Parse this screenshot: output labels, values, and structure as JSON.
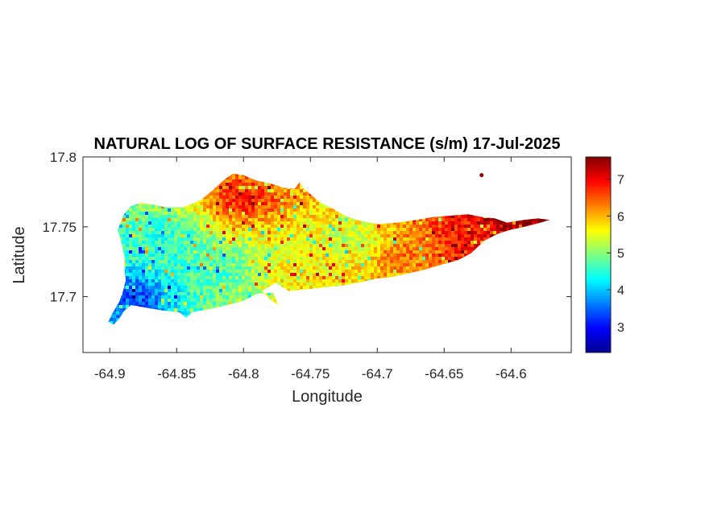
{
  "chart_data": {
    "type": "heatmap",
    "title": "NATURAL LOG OF SURFACE RESISTANCE (s/m) 17-Jul-2025",
    "xlabel": "Longitude",
    "ylabel": "Latitude",
    "xlim": [
      -64.92,
      -64.555
    ],
    "ylim": [
      17.66,
      17.8
    ],
    "x_ticks": [
      {
        "value": -64.9,
        "label": "-64.9"
      },
      {
        "value": -64.85,
        "label": "-64.85"
      },
      {
        "value": -64.8,
        "label": "-64.8"
      },
      {
        "value": -64.75,
        "label": "-64.75"
      },
      {
        "value": -64.7,
        "label": "-64.7"
      },
      {
        "value": -64.65,
        "label": "-64.65"
      },
      {
        "value": -64.6,
        "label": "-64.6"
      }
    ],
    "y_ticks": [
      {
        "value": 17.8,
        "label": "17.8"
      },
      {
        "value": 17.75,
        "label": "17.75"
      },
      {
        "value": 17.7,
        "label": "17.7"
      }
    ],
    "colorbar": {
      "colormap": "jet",
      "range": [
        2.3,
        7.6
      ],
      "ticks": [
        {
          "value": 3,
          "label": "3"
        },
        {
          "value": 4,
          "label": "4"
        },
        {
          "value": 5,
          "label": "5"
        },
        {
          "value": 6,
          "label": "6"
        },
        {
          "value": 7,
          "label": "7"
        }
      ]
    },
    "island_outline": [
      [
        -64.897,
        17.68
      ],
      [
        -64.893,
        17.684
      ],
      [
        -64.889,
        17.69
      ],
      [
        -64.884,
        17.694
      ],
      [
        -64.872,
        17.692
      ],
      [
        -64.86,
        17.69
      ],
      [
        -64.848,
        17.689
      ],
      [
        -64.843,
        17.685
      ],
      [
        -64.838,
        17.689
      ],
      [
        -64.826,
        17.691
      ],
      [
        -64.812,
        17.694
      ],
      [
        -64.8,
        17.697
      ],
      [
        -64.79,
        17.702
      ],
      [
        -64.778,
        17.703
      ],
      [
        -64.774,
        17.694
      ],
      [
        -64.78,
        17.698
      ],
      [
        -64.786,
        17.704
      ],
      [
        -64.776,
        17.71
      ],
      [
        -64.766,
        17.704
      ],
      [
        -64.756,
        17.705
      ],
      [
        -64.746,
        17.706
      ],
      [
        -64.736,
        17.707
      ],
      [
        -64.726,
        17.708
      ],
      [
        -64.714,
        17.71
      ],
      [
        -64.7,
        17.713
      ],
      [
        -64.69,
        17.714
      ],
      [
        -64.68,
        17.716
      ],
      [
        -64.666,
        17.719
      ],
      [
        -64.652,
        17.723
      ],
      [
        -64.64,
        17.726
      ],
      [
        -64.63,
        17.731
      ],
      [
        -64.62,
        17.74
      ],
      [
        -64.61,
        17.745
      ],
      [
        -64.6,
        17.748
      ],
      [
        -64.59,
        17.75
      ],
      [
        -64.578,
        17.753
      ],
      [
        -64.571,
        17.755
      ],
      [
        -64.58,
        17.756
      ],
      [
        -64.59,
        17.755
      ],
      [
        -64.603,
        17.753
      ],
      [
        -64.612,
        17.756
      ],
      [
        -64.622,
        17.757
      ],
      [
        -64.632,
        17.759
      ],
      [
        -64.645,
        17.758
      ],
      [
        -64.658,
        17.757
      ],
      [
        -64.67,
        17.755
      ],
      [
        -64.685,
        17.753
      ],
      [
        -64.7,
        17.752
      ],
      [
        -64.712,
        17.754
      ],
      [
        -64.722,
        17.757
      ],
      [
        -64.728,
        17.76
      ],
      [
        -64.733,
        17.763
      ],
      [
        -64.74,
        17.766
      ],
      [
        -64.746,
        17.77
      ],
      [
        -64.752,
        17.775
      ],
      [
        -64.756,
        17.778
      ],
      [
        -64.758,
        17.782
      ],
      [
        -64.762,
        17.777
      ],
      [
        -64.77,
        17.778
      ],
      [
        -64.78,
        17.781
      ],
      [
        -64.79,
        17.783
      ],
      [
        -64.8,
        17.787
      ],
      [
        -64.808,
        17.788
      ],
      [
        -64.814,
        17.784
      ],
      [
        -64.822,
        17.777
      ],
      [
        -64.832,
        17.769
      ],
      [
        -64.845,
        17.764
      ],
      [
        -64.858,
        17.764
      ],
      [
        -64.868,
        17.766
      ],
      [
        -64.876,
        17.767
      ],
      [
        -64.884,
        17.765
      ],
      [
        -64.89,
        17.758
      ],
      [
        -64.894,
        17.748
      ],
      [
        -64.891,
        17.738
      ],
      [
        -64.889,
        17.728
      ],
      [
        -64.889,
        17.72
      ],
      [
        -64.888,
        17.712
      ],
      [
        -64.89,
        17.704
      ],
      [
        -64.893,
        17.696
      ],
      [
        -64.898,
        17.688
      ],
      [
        -64.901,
        17.682
      ]
    ],
    "islet": {
      "lon": -64.622,
      "lat": 17.787
    },
    "field_description_points": [
      {
        "lon": -64.88,
        "lat": 17.7,
        "value": 3.4
      },
      {
        "lon": -64.86,
        "lat": 17.74,
        "value": 4.5
      },
      {
        "lon": -64.82,
        "lat": 17.72,
        "value": 4.7
      },
      {
        "lon": -64.8,
        "lat": 17.77,
        "value": 6.8
      },
      {
        "lon": -64.76,
        "lat": 17.71,
        "value": 5.7
      },
      {
        "lon": -64.72,
        "lat": 17.74,
        "value": 5.3
      },
      {
        "lon": -64.68,
        "lat": 17.73,
        "value": 6.3
      },
      {
        "lon": -64.63,
        "lat": 17.745,
        "value": 6.9
      },
      {
        "lon": -64.59,
        "lat": 17.752,
        "value": 7.5
      }
    ]
  }
}
